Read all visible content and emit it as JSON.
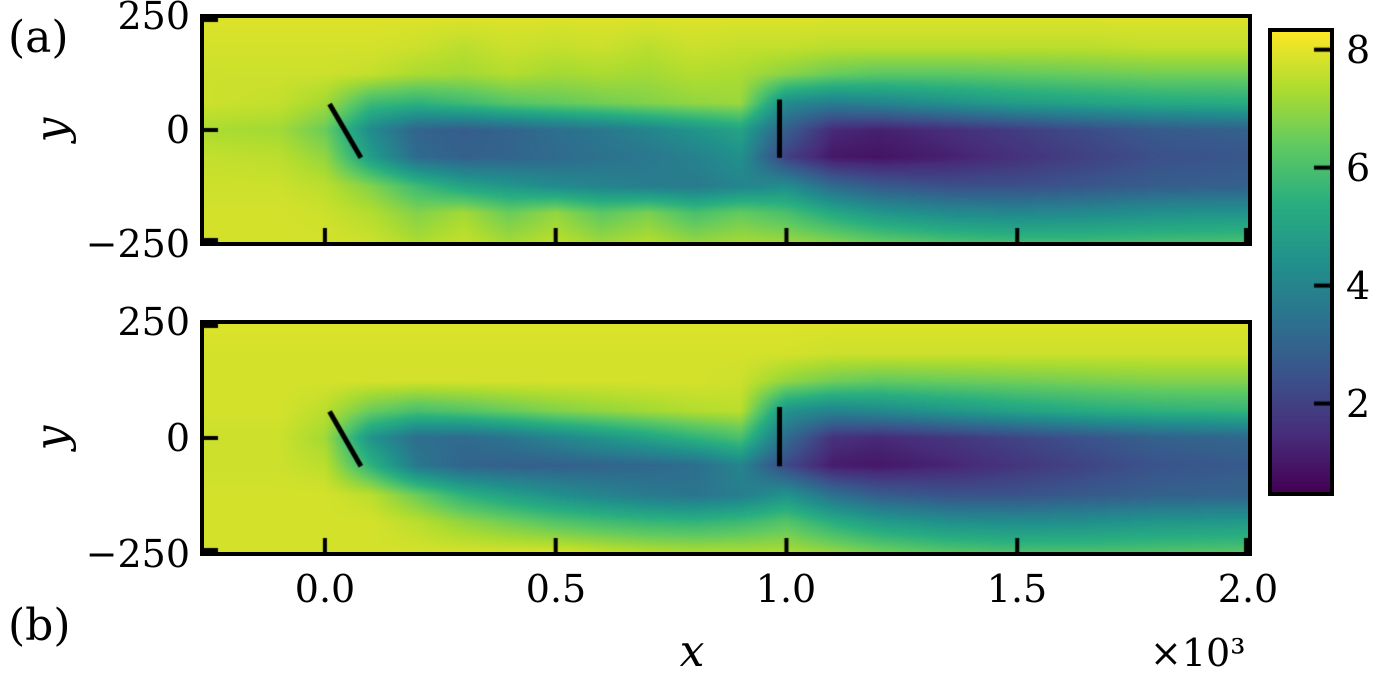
{
  "figure": {
    "background": "#ffffff",
    "panel_labels": [
      "(a)",
      "(b)"
    ]
  },
  "axes": {
    "x_label": "x",
    "x_multiplier": "×10³",
    "x_tick_labels": [
      "0.0",
      "0.5",
      "1.0",
      "1.5",
      "2.0"
    ],
    "x_tick_values": [
      0,
      500,
      1000,
      1500,
      2000
    ],
    "x_range": [
      -262,
      2000
    ],
    "y_label": "y",
    "y_tick_labels": [
      "250",
      "0",
      "−250"
    ],
    "y_tick_values": [
      250,
      0,
      -250
    ],
    "y_range": [
      -250,
      250
    ],
    "tick_color": "#000000"
  },
  "colorbar": {
    "tick_labels": [
      "8",
      "6",
      "4",
      "2"
    ],
    "tick_values": [
      8,
      6,
      4,
      2
    ],
    "vmin": 0.5,
    "vmax": 8.3,
    "colormap": "viridis",
    "stops": [
      [
        0.0,
        "#440154"
      ],
      [
        0.125,
        "#472d7b"
      ],
      [
        0.25,
        "#3b528b"
      ],
      [
        0.375,
        "#2c728e"
      ],
      [
        0.5,
        "#21918c"
      ],
      [
        0.625,
        "#28ae80"
      ],
      [
        0.75,
        "#5ec962"
      ],
      [
        0.875,
        "#addc30"
      ],
      [
        1.0,
        "#fde725"
      ]
    ]
  },
  "chart_data": {
    "type": "heatmap",
    "title": "",
    "xlabel": "x",
    "ylabel": "y",
    "x": [
      -250,
      -100,
      0,
      100,
      200,
      300,
      400,
      500,
      600,
      700,
      800,
      900,
      1000,
      1100,
      1200,
      1350,
      1500,
      1650,
      1800,
      2000
    ],
    "y": [
      250,
      185,
      125,
      60,
      0,
      -60,
      -125,
      -185,
      -250
    ],
    "panels": [
      {
        "label": "(a)",
        "values": [
          [
            7.9,
            7.9,
            7.9,
            7.9,
            7.9,
            7.9,
            7.9,
            7.9,
            7.9,
            7.9,
            7.9,
            7.9,
            7.9,
            7.9,
            7.9,
            7.9,
            7.9,
            7.9,
            7.9,
            7.9
          ],
          [
            7.8,
            7.8,
            7.8,
            7.8,
            7.7,
            7.5,
            7.7,
            7.6,
            7.7,
            7.5,
            7.7,
            7.6,
            7.6,
            7.5,
            7.5,
            7.5,
            7.5,
            7.5,
            7.6,
            7.6
          ],
          [
            7.7,
            7.7,
            7.7,
            7.6,
            7.3,
            7.2,
            7.4,
            7.2,
            7.3,
            7.2,
            7.4,
            7.3,
            6.9,
            6.5,
            6.3,
            6.3,
            6.4,
            6.5,
            6.6,
            6.6
          ],
          [
            7.7,
            7.6,
            7.2,
            5.8,
            5.5,
            5.8,
            6.2,
            6.4,
            6.6,
            6.8,
            7.0,
            7.1,
            4.2,
            3.8,
            4.0,
            4.4,
            4.8,
            5.0,
            5.2,
            5.3
          ],
          [
            7.3,
            7.2,
            6.5,
            4.2,
            3.0,
            2.8,
            3.0,
            3.3,
            3.6,
            4.0,
            4.5,
            5.0,
            2.8,
            1.4,
            1.2,
            1.5,
            1.9,
            2.3,
            2.7,
            2.9
          ],
          [
            7.6,
            7.5,
            7.0,
            4.8,
            3.2,
            2.9,
            3.0,
            3.2,
            3.4,
            3.6,
            3.9,
            4.4,
            2.0,
            1.0,
            0.9,
            1.2,
            1.6,
            2.0,
            2.4,
            2.6
          ],
          [
            7.7,
            7.7,
            7.5,
            6.8,
            5.8,
            5.0,
            4.6,
            4.2,
            4.0,
            3.8,
            3.7,
            4.0,
            4.3,
            3.2,
            2.7,
            2.4,
            2.4,
            2.6,
            2.8,
            2.9
          ],
          [
            7.8,
            7.8,
            7.7,
            7.4,
            6.8,
            7.2,
            6.5,
            7.0,
            6.3,
            6.7,
            6.0,
            6.4,
            6.0,
            5.2,
            4.6,
            4.2,
            4.1,
            4.2,
            4.4,
            4.5
          ],
          [
            7.8,
            7.8,
            7.8,
            7.7,
            7.3,
            7.6,
            7.2,
            7.5,
            7.1,
            7.4,
            7.0,
            7.2,
            7.1,
            6.8,
            6.4,
            6.0,
            5.8,
            5.8,
            5.9,
            6.0
          ]
        ]
      },
      {
        "label": "(b)",
        "values": [
          [
            7.9,
            7.9,
            7.9,
            7.9,
            7.9,
            7.9,
            7.9,
            7.9,
            7.9,
            7.9,
            7.9,
            7.9,
            7.9,
            7.9,
            7.9,
            7.9,
            7.9,
            7.9,
            7.9,
            7.9
          ],
          [
            7.8,
            7.8,
            7.8,
            7.8,
            7.8,
            7.8,
            7.8,
            7.8,
            7.8,
            7.8,
            7.8,
            7.8,
            7.8,
            7.7,
            7.7,
            7.7,
            7.7,
            7.7,
            7.7,
            7.7
          ],
          [
            7.8,
            7.8,
            7.8,
            7.8,
            7.8,
            7.8,
            7.8,
            7.8,
            7.8,
            7.8,
            7.8,
            7.7,
            7.0,
            6.6,
            6.4,
            6.5,
            6.6,
            6.7,
            6.8,
            6.8
          ],
          [
            7.8,
            7.8,
            7.5,
            6.5,
            6.0,
            6.2,
            6.5,
            6.8,
            7.0,
            7.2,
            7.4,
            7.5,
            4.5,
            4.0,
            4.2,
            4.6,
            5.0,
            5.3,
            5.5,
            5.6
          ],
          [
            7.7,
            7.7,
            7.2,
            4.5,
            3.3,
            3.2,
            3.5,
            4.0,
            4.5,
            5.0,
            5.5,
            6.0,
            3.2,
            1.6,
            1.4,
            1.7,
            2.1,
            2.5,
            2.9,
            3.1
          ],
          [
            7.7,
            7.7,
            7.5,
            5.5,
            3.6,
            3.0,
            2.9,
            2.9,
            3.0,
            3.1,
            3.3,
            4.0,
            2.2,
            1.1,
            1.0,
            1.3,
            1.7,
            2.1,
            2.5,
            2.7
          ],
          [
            7.8,
            7.8,
            7.8,
            7.5,
            6.5,
            5.5,
            4.9,
            4.4,
            4.0,
            3.7,
            3.5,
            3.8,
            4.5,
            3.4,
            2.8,
            2.5,
            2.5,
            2.7,
            2.9,
            3.0
          ],
          [
            7.8,
            7.8,
            7.8,
            7.8,
            7.5,
            7.0,
            6.6,
            6.2,
            5.9,
            5.7,
            5.6,
            5.8,
            6.2,
            5.4,
            4.8,
            4.4,
            4.3,
            4.4,
            4.6,
            4.7
          ],
          [
            7.8,
            7.8,
            7.8,
            7.8,
            7.8,
            7.8,
            7.8,
            7.8,
            7.6,
            7.4,
            7.3,
            7.3,
            7.3,
            7.0,
            6.6,
            6.2,
            6.0,
            6.0,
            6.1,
            6.2
          ]
        ]
      }
    ],
    "overlays": {
      "lines": [
        {
          "x1": 10,
          "y1": 58,
          "x2": 78,
          "y2": -62,
          "color": "#000000",
          "width": 5
        },
        {
          "x1": 985,
          "y1": 68,
          "x2": 985,
          "y2": -62,
          "color": "#000000",
          "width": 5
        }
      ]
    }
  }
}
